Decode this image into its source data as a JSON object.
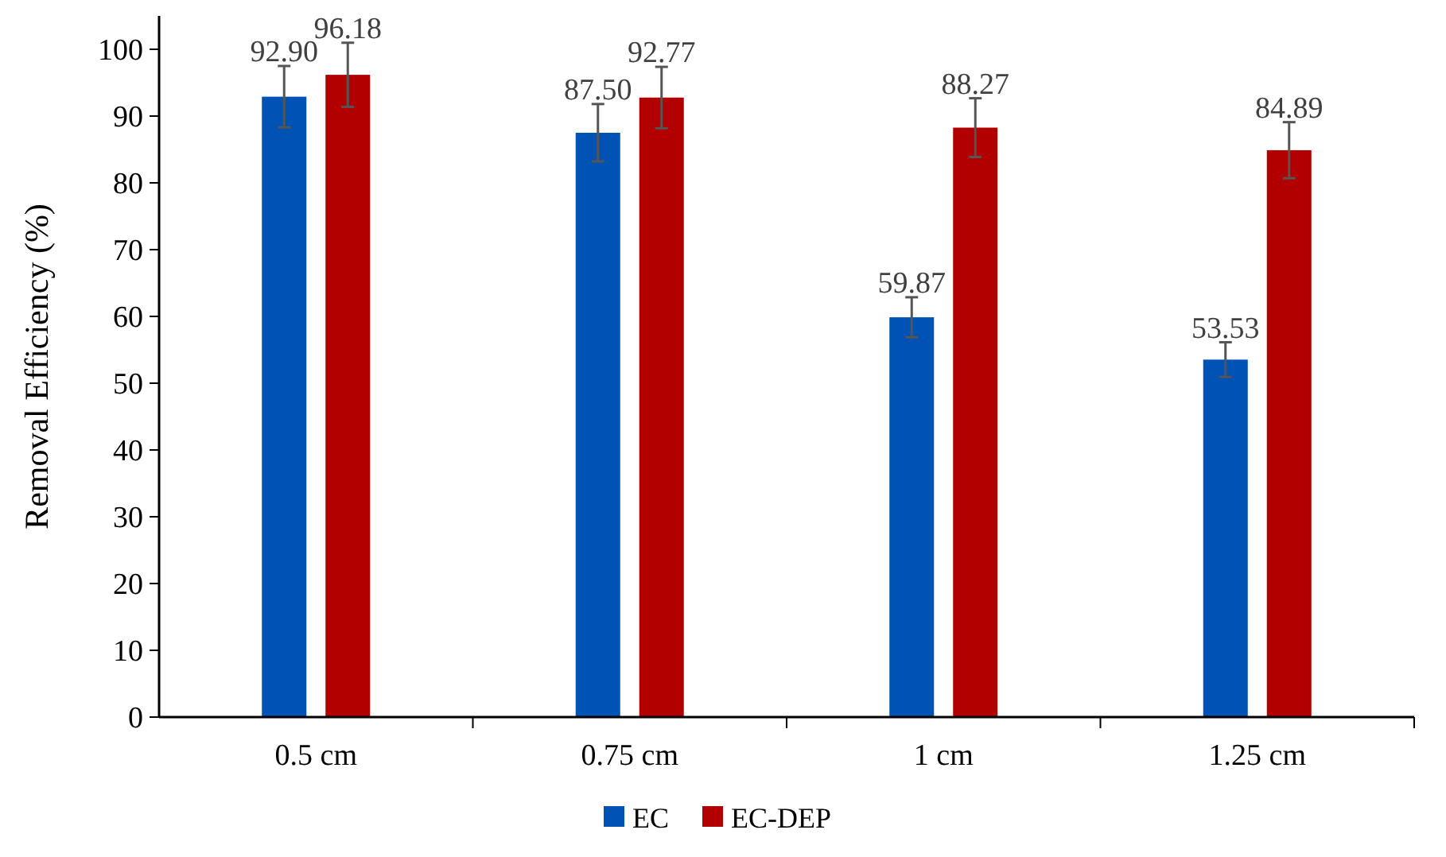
{
  "chart_data": {
    "type": "bar",
    "ylabel": "Removal Efficiency (%)",
    "categories": [
      "0.5 cm",
      "0.75 cm",
      "1 cm",
      "1.25 cm"
    ],
    "series": [
      {
        "name": "EC",
        "color": "#0052b4",
        "values": [
          92.9,
          87.5,
          59.87,
          53.53
        ],
        "value_labels": [
          "92.90",
          "87.50",
          "59.87",
          "53.53"
        ],
        "errors": [
          4.6,
          4.3,
          3,
          2.6
        ]
      },
      {
        "name": "EC-DEP",
        "color": "#b20000",
        "values": [
          96.18,
          92.77,
          88.27,
          84.89
        ],
        "value_labels": [
          "96.18",
          "92.77",
          "88.27",
          "84.89"
        ],
        "errors": [
          4.8,
          4.6,
          4.4,
          4.2
        ]
      }
    ],
    "ylim": [
      0,
      105
    ],
    "yticks": [
      0,
      10,
      20,
      30,
      40,
      50,
      60,
      70,
      80,
      90,
      100
    ],
    "grid": false,
    "legend": "bottom"
  }
}
